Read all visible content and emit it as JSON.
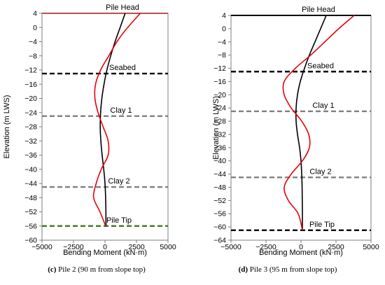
{
  "chart_data": [
    {
      "type": "line",
      "xlabel": "Bending Moment (kN·m)",
      "ylabel": "Elevation (m LWS)",
      "xlim": [
        -5000,
        5000
      ],
      "ylim": [
        -60,
        4
      ],
      "xticks": [
        -5000,
        -2500,
        0,
        2500,
        5000
      ],
      "yticks": [
        4,
        0,
        -4,
        -8,
        -12,
        -16,
        -20,
        -24,
        -28,
        -32,
        -36,
        -40,
        -44,
        -48,
        -52,
        -56,
        -60
      ],
      "reference_lines": [
        {
          "label": "Pile Head",
          "y": 4,
          "color": "#c0504d",
          "style": "solid"
        },
        {
          "label": "Seabed",
          "y": -13,
          "color": "#000000",
          "style": "dashed"
        },
        {
          "label": "Clay 1",
          "y": -25,
          "color": "#808080",
          "style": "dashed"
        },
        {
          "label": "Clay 2",
          "y": -45,
          "color": "#808080",
          "style": "dashed"
        },
        {
          "label": "Pile Tip",
          "y": -56,
          "color": "#4f7a28",
          "style": "dashed"
        }
      ],
      "series": [
        {
          "color": "#000000",
          "points": [
            [
              1600,
              4
            ],
            [
              1200,
              0
            ],
            [
              800,
              -4
            ],
            [
              450,
              -8
            ],
            [
              150,
              -12
            ],
            [
              -80,
              -16
            ],
            [
              -250,
              -20
            ],
            [
              -350,
              -24
            ],
            [
              -380,
              -28
            ],
            [
              -330,
              -32
            ],
            [
              -230,
              -36
            ],
            [
              -100,
              -40
            ],
            [
              0,
              -44
            ],
            [
              50,
              -48
            ],
            [
              70,
              -52
            ],
            [
              80,
              -56
            ]
          ]
        },
        {
          "color": "#e8000b",
          "points": [
            [
              2800,
              4
            ],
            [
              1800,
              0
            ],
            [
              950,
              -4
            ],
            [
              300,
              -8
            ],
            [
              -350,
              -12
            ],
            [
              -750,
              -16
            ],
            [
              -800,
              -20
            ],
            [
              -550,
              -24
            ],
            [
              -150,
              -28
            ],
            [
              250,
              -32
            ],
            [
              250,
              -36
            ],
            [
              -300,
              -40
            ],
            [
              -700,
              -44
            ],
            [
              -900,
              -48
            ],
            [
              -400,
              -52
            ],
            [
              50,
              -56
            ]
          ]
        }
      ],
      "caption": {
        "label": "(c)",
        "text": "Pile 2 (90 m from slope top)"
      }
    },
    {
      "type": "line",
      "xlabel": "Bending Moment (kN·m)",
      "ylabel": "Elevation (m LWS)",
      "xlim": [
        -5000,
        5000
      ],
      "ylim": [
        -64,
        4
      ],
      "xticks": [
        -5000,
        -2500,
        0,
        2500,
        5000
      ],
      "yticks": [
        4,
        0,
        -4,
        -8,
        -12,
        -16,
        -20,
        -24,
        -28,
        -32,
        -36,
        -40,
        -44,
        -48,
        -52,
        -56,
        -60,
        -64
      ],
      "reference_lines": [
        {
          "label": "Pile Head",
          "y": 4,
          "color": "#000000",
          "style": "solid"
        },
        {
          "label": "Seabed",
          "y": -13,
          "color": "#000000",
          "style": "dashed"
        },
        {
          "label": "Clay 1",
          "y": -25,
          "color": "#808080",
          "style": "dashed"
        },
        {
          "label": "Clay 2",
          "y": -45,
          "color": "#808080",
          "style": "dashed"
        },
        {
          "label": "Pile Tip",
          "y": -61,
          "color": "#000000",
          "style": "dashed"
        }
      ],
      "series": [
        {
          "color": "#000000",
          "points": [
            [
              1800,
              4
            ],
            [
              1400,
              0
            ],
            [
              1000,
              -4
            ],
            [
              600,
              -8
            ],
            [
              250,
              -12
            ],
            [
              -50,
              -16
            ],
            [
              -250,
              -20
            ],
            [
              -350,
              -24
            ],
            [
              -350,
              -28
            ],
            [
              -250,
              -32
            ],
            [
              -100,
              -36
            ],
            [
              0,
              -40
            ],
            [
              50,
              -44
            ],
            [
              80,
              -48
            ],
            [
              90,
              -52
            ],
            [
              100,
              -56
            ],
            [
              100,
              -61
            ]
          ]
        },
        {
          "color": "#e8000b",
          "points": [
            [
              3800,
              4
            ],
            [
              2700,
              0
            ],
            [
              1700,
              -4
            ],
            [
              700,
              -8
            ],
            [
              -400,
              -12
            ],
            [
              -1200,
              -16
            ],
            [
              -1200,
              -20
            ],
            [
              -700,
              -24
            ],
            [
              50,
              -28
            ],
            [
              550,
              -32
            ],
            [
              600,
              -36
            ],
            [
              100,
              -40
            ],
            [
              -700,
              -44
            ],
            [
              -1200,
              -48
            ],
            [
              -900,
              -52
            ],
            [
              -200,
              -56
            ],
            [
              100,
              -61
            ]
          ]
        }
      ],
      "caption": {
        "label": "(d)",
        "text": "Pile 3 (95 m from slope top)"
      }
    }
  ]
}
